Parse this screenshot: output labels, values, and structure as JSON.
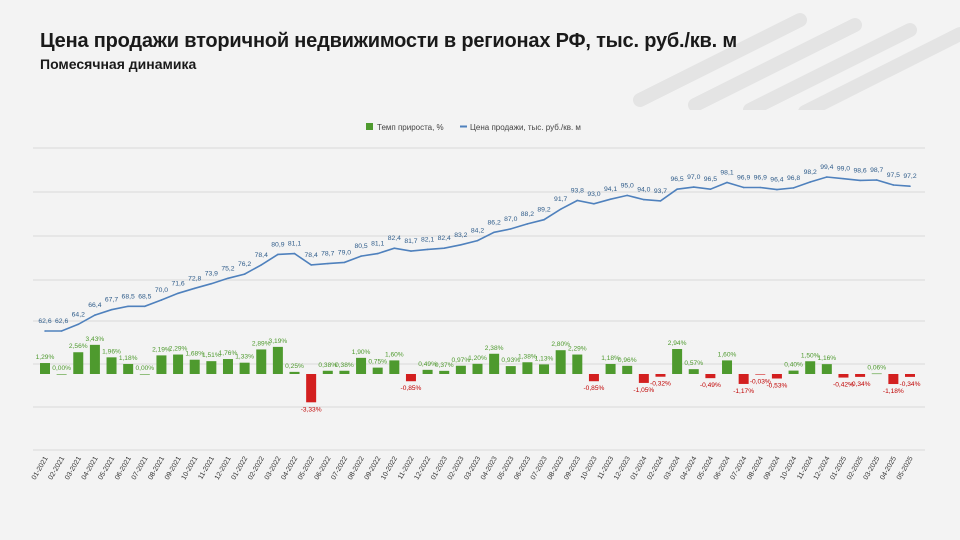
{
  "title": "Цена продажи вторичной недвижимости в регионах РФ, тыс. руб./кв. м",
  "subtitle": "Помесячная динамика",
  "colors": {
    "bar_positive": "#4e9a2e",
    "bar_negative": "#d31f1f",
    "line": "#4f81bd",
    "label_price": "#2f5c8a",
    "label_pos": "#4e9a2e",
    "label_neg": "#c00000",
    "grid": "#d9d9d9"
  },
  "chart_data": {
    "type": "bar+line",
    "title": "Цена продажи вторичной недвижимости в регионах РФ, тыс. руб./кв. м",
    "subtitle": "Помесячная динамика",
    "legend_position": "top",
    "grid": true,
    "categories": [
      "01-2021",
      "02-2021",
      "03-2021",
      "04-2021",
      "05-2021",
      "06-2021",
      "07-2021",
      "08-2021",
      "09-2021",
      "10-2021",
      "11-2021",
      "12-2021",
      "01-2022",
      "02-2022",
      "03-2022",
      "04-2022",
      "05-2022",
      "06-2022",
      "07-2022",
      "08-2022",
      "09-2022",
      "10-2022",
      "11-2022",
      "12-2022",
      "01-2023",
      "02-2023",
      "03-2023",
      "04-2023",
      "05-2023",
      "06-2023",
      "07-2023",
      "08-2023",
      "09-2023",
      "10-2023",
      "11-2023",
      "12-2023",
      "01-2024",
      "02-2024",
      "03-2024",
      "04-2024",
      "05-2024",
      "06-2024",
      "07-2024",
      "08-2024",
      "09-2024",
      "10-2024",
      "11-2024",
      "12-2024",
      "01-2025",
      "02-2025",
      "03-2025",
      "04-2025",
      "05-2025"
    ],
    "series": [
      {
        "name": "Темп прироста, %",
        "type": "bar",
        "values": [
          1.29,
          0.0,
          2.56,
          3.43,
          1.96,
          1.18,
          0.0,
          2.19,
          2.29,
          1.68,
          1.51,
          1.76,
          1.33,
          2.89,
          3.19,
          0.25,
          -3.33,
          0.38,
          0.38,
          1.9,
          0.75,
          1.6,
          -0.85,
          0.49,
          0.37,
          0.97,
          1.2,
          2.38,
          0.93,
          1.38,
          1.13,
          2.8,
          2.29,
          -0.85,
          1.18,
          0.96,
          -1.05,
          -0.32,
          2.94,
          0.57,
          -0.49,
          1.6,
          -1.17,
          -0.03,
          -0.53,
          0.4,
          1.5,
          1.16,
          -0.42,
          -0.34,
          0.06,
          -1.18,
          -0.34
        ],
        "labels": [
          "1,29%",
          "0,00%",
          "2,56%",
          "3,43%",
          "1,96%",
          "1,18%",
          "0,00%",
          "2,19%",
          "2,29%",
          "1,68%",
          "1,51%",
          "1,76%",
          "1,33%",
          "2,89%",
          "3,19%",
          "0,25%",
          "-3,33%",
          "0,38%",
          "0,38%",
          "1,90%",
          "0,75%",
          "1,60%",
          "-0,85%",
          "0,49%",
          "0,37%",
          "0,97%",
          "1,20%",
          "2,38%",
          "0,93%",
          "1,38%",
          "1,13%",
          "2,80%",
          "2,29%",
          "-0,85%",
          "1,18%",
          "0,96%",
          "-1,05%",
          "-0,32%",
          "2,94%",
          "0,57%",
          "-0,49%",
          "1,60%",
          "-1,17%",
          "-0,03%",
          "-0,53%",
          "0,40%",
          "1,50%",
          "1,16%",
          "-0,42%",
          "-0,34%",
          "0,06%",
          "-1,18%",
          "-0,34%"
        ]
      },
      {
        "name": "Цена продажи, тыс. руб./кв. м",
        "type": "line",
        "values": [
          62.6,
          62.6,
          64.2,
          66.4,
          67.7,
          68.5,
          68.5,
          70.0,
          71.6,
          72.8,
          73.9,
          75.2,
          76.2,
          78.4,
          80.9,
          81.1,
          78.4,
          78.7,
          79.0,
          80.5,
          81.1,
          82.4,
          81.7,
          82.1,
          82.4,
          83.2,
          84.2,
          86.2,
          87.0,
          88.2,
          89.2,
          91.7,
          93.8,
          93.0,
          94.1,
          95.0,
          94.0,
          93.7,
          96.5,
          97.0,
          96.5,
          98.1,
          96.9,
          96.9,
          96.4,
          96.8,
          98.2,
          99.4,
          99.0,
          98.6,
          98.7,
          97.5,
          97.2
        ],
        "labels": [
          "62,6",
          "62,6",
          "64,2",
          "66,4",
          "67,7",
          "68,5",
          "68,5",
          "70,0",
          "71,6",
          "72,8",
          "73,9",
          "75,2",
          "76,2",
          "78,4",
          "80,9",
          "81,1",
          "78,4",
          "78,7",
          "79,0",
          "80,5",
          "81,1",
          "82,4",
          "81,7",
          "82,1",
          "82,4",
          "83,2",
          "84,2",
          "86,2",
          "87,0",
          "88,2",
          "89,2",
          "91,7",
          "93,8",
          "93,0",
          "94,1",
          "95,0",
          "94,0",
          "93,7",
          "96,5",
          "97,0",
          "96,5",
          "98,1",
          "96,9",
          "96,9",
          "96,4",
          "96,8",
          "98,2",
          "99,4",
          "99,0",
          "98,6",
          "98,7",
          "97,5",
          "97,2"
        ]
      }
    ]
  }
}
